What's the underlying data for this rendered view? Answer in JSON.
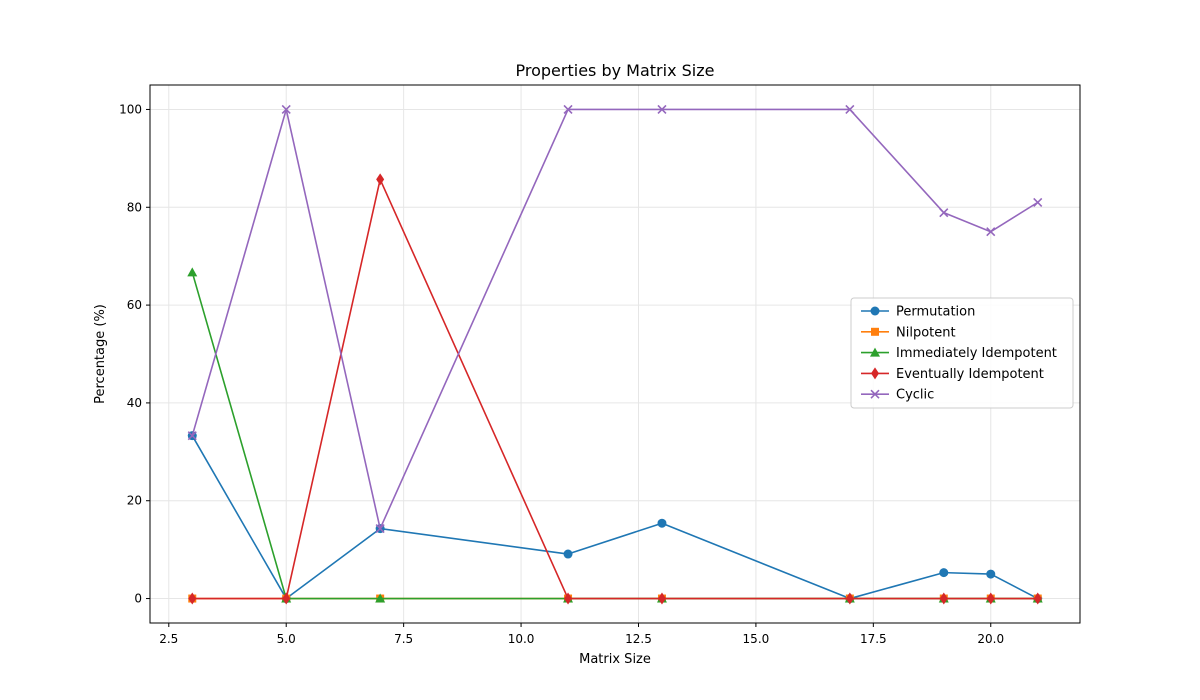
{
  "chart_data": {
    "type": "line",
    "title": "Properties by Matrix Size",
    "xlabel": "Matrix Size",
    "ylabel": "Percentage (%)",
    "xlim": [
      2.1,
      21.9
    ],
    "ylim": [
      -5,
      105
    ],
    "xticks": [
      2.5,
      5.0,
      7.5,
      10.0,
      12.5,
      15.0,
      17.5,
      20.0
    ],
    "xtick_labels": [
      "2.5",
      "5.0",
      "7.5",
      "10.0",
      "12.5",
      "15.0",
      "17.5",
      "20.0"
    ],
    "yticks": [
      0,
      20,
      40,
      60,
      80,
      100
    ],
    "ytick_labels": [
      "0",
      "20",
      "40",
      "60",
      "80",
      "100"
    ],
    "grid": true,
    "legend_position": "center-right",
    "x": [
      3,
      5,
      7,
      11,
      13,
      17,
      19,
      20,
      21
    ],
    "series": [
      {
        "name": "Permutation",
        "color": "#1f77b4",
        "marker": "circle",
        "values": [
          33.3,
          0,
          14.3,
          9.1,
          15.4,
          0,
          5.3,
          5.0,
          0
        ]
      },
      {
        "name": "Nilpotent",
        "color": "#ff7f0e",
        "marker": "square",
        "values": [
          0,
          0,
          0,
          0,
          0,
          0,
          0,
          0,
          0
        ]
      },
      {
        "name": "Immediately Idempotent",
        "color": "#2ca02c",
        "marker": "triangle",
        "values": [
          66.7,
          0,
          0,
          0,
          0,
          0,
          0,
          0,
          0
        ]
      },
      {
        "name": "Eventually Idempotent",
        "color": "#d62728",
        "marker": "diamond",
        "values": [
          0,
          0,
          85.7,
          0,
          0,
          0,
          0,
          0,
          0
        ]
      },
      {
        "name": "Cyclic",
        "color": "#9467bd",
        "marker": "x",
        "values": [
          33.3,
          100,
          14.3,
          100,
          100,
          100,
          78.9,
          75.0,
          81.0
        ]
      }
    ]
  }
}
